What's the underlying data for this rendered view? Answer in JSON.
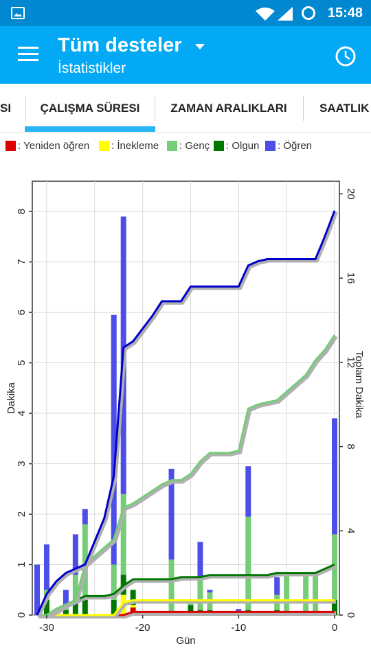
{
  "status_bar": {
    "time": "15:48",
    "icons": [
      "image-icon",
      "wifi-icon",
      "signal-icon",
      "battery-icon"
    ]
  },
  "app_bar": {
    "title": "Tüm desteler",
    "subtitle": "İstatistikler",
    "icons": [
      "menu-icon",
      "dropdown-icon",
      "clock-icon"
    ]
  },
  "tabs": [
    {
      "label": "SI",
      "active": false
    },
    {
      "label": "ÇALIŞMA SÜRESI",
      "active": true
    },
    {
      "label": "ZAMAN ARALIKLARI",
      "active": false
    },
    {
      "label": "SAATLIK",
      "active": false
    }
  ],
  "colors": {
    "primary": "#03a9f4",
    "status": "#0288d1",
    "tab_indicator": "#29b6f6"
  },
  "chart_data": {
    "type": "bar",
    "xlabel": "Gün",
    "ylabel": "Dakika",
    "ylabel_right": "Toplam Dakika",
    "xlim": [
      -31.5,
      0.5
    ],
    "ylim": [
      0,
      8.6
    ],
    "ylim_right": [
      0,
      20.6
    ],
    "xticks": [
      -30,
      -20,
      -10,
      0
    ],
    "yticks": [
      0,
      1,
      2,
      3,
      4,
      5,
      6,
      7,
      8
    ],
    "yticks_right": [
      0,
      4,
      8,
      12,
      16,
      20
    ],
    "grid": true,
    "legend_position": "top",
    "series": [
      {
        "name": ": Yeniden öğren",
        "color": "#dd0000"
      },
      {
        "name": ": İnekleme",
        "color": "#ffff00"
      },
      {
        "name": ": Genç",
        "color": "#77cc77"
      },
      {
        "name": ": Olgun",
        "color": "#007700"
      },
      {
        "name": ": Öğren",
        "color": "#4d4de8"
      }
    ],
    "bars": [
      {
        "day": -31,
        "relearn": 0,
        "cram": 0,
        "young": 0,
        "mature": 0,
        "learn": 1.0
      },
      {
        "day": -30,
        "relearn": 0,
        "cram": 0,
        "young": 0.2,
        "mature": 0.3,
        "learn": 0.9
      },
      {
        "day": -28,
        "relearn": 0,
        "cram": 0,
        "young": 0.1,
        "mature": 0.1,
        "learn": 0.3
      },
      {
        "day": -27,
        "relearn": 0,
        "cram": 0,
        "young": 0.5,
        "mature": 0.3,
        "learn": 0.8
      },
      {
        "day": -26,
        "relearn": 0,
        "cram": 0,
        "young": 1.5,
        "mature": 0.3,
        "learn": 0.3
      },
      {
        "day": -23,
        "relearn": 0,
        "cram": 0,
        "young": 0.7,
        "mature": 0.3,
        "learn": 4.95
      },
      {
        "day": -22,
        "relearn": 0,
        "cram": 0.4,
        "young": 1.6,
        "mature": 0.4,
        "learn": 5.5
      },
      {
        "day": -21,
        "relearn": 0.15,
        "cram": 0.05,
        "young": 0,
        "mature": 0.3,
        "learn": 0
      },
      {
        "day": -17,
        "relearn": 0,
        "cram": 0,
        "young": 1.05,
        "mature": 0.05,
        "learn": 1.8
      },
      {
        "day": -15,
        "relearn": 0,
        "cram": 0,
        "young": 0.1,
        "mature": 0.2,
        "learn": 0
      },
      {
        "day": -14,
        "relearn": 0,
        "cram": 0,
        "young": 0.65,
        "mature": 0.1,
        "learn": 0.7
      },
      {
        "day": -13,
        "relearn": 0,
        "cram": 0,
        "young": 0.35,
        "mature": 0.1,
        "learn": 0.05
      },
      {
        "day": -10,
        "relearn": 0,
        "cram": 0,
        "young": 0,
        "mature": 0,
        "learn": 0.12
      },
      {
        "day": -9,
        "relearn": 0,
        "cram": 0,
        "young": 1.85,
        "mature": 0.1,
        "learn": 1.0
      },
      {
        "day": -6,
        "relearn": 0,
        "cram": 0,
        "young": 0.3,
        "mature": 0.1,
        "learn": 0.35
      },
      {
        "day": -5,
        "relearn": 0,
        "cram": 0,
        "young": 0.8,
        "mature": 0.05,
        "learn": 0
      },
      {
        "day": -3,
        "relearn": 0,
        "cram": 0,
        "young": 0.85,
        "mature": 0,
        "learn": 0
      },
      {
        "day": -2,
        "relearn": 0,
        "cram": 0,
        "young": 0.78,
        "mature": 0,
        "learn": 0
      },
      {
        "day": 0,
        "relearn": 0,
        "cram": 0,
        "young": 1.3,
        "mature": 0.3,
        "learn": 2.3
      }
    ],
    "cumulative": {
      "x": [
        -31,
        -30,
        -29,
        -28,
        -27,
        -26,
        -25,
        -24,
        -23,
        -22,
        -21,
        -20,
        -19,
        -18,
        -17,
        -16,
        -15,
        -14,
        -13,
        -12,
        -11,
        -10,
        -9,
        -8,
        -7,
        -6,
        -5,
        -4,
        -3,
        -2,
        -1,
        0
      ],
      "learn": [
        0,
        1.0,
        1.6,
        2.0,
        2.2,
        2.4,
        3.5,
        4.6,
        6.6,
        12.7,
        13.0,
        13.6,
        14.2,
        14.9,
        14.9,
        14.9,
        15.6,
        15.6,
        15.6,
        15.6,
        15.6,
        15.6,
        16.6,
        16.8,
        16.9,
        16.9,
        16.9,
        16.9,
        16.9,
        16.9,
        18.0,
        19.2
      ],
      "young": [
        0,
        0,
        0.3,
        0.5,
        0.7,
        2.4,
        2.8,
        3.2,
        3.6,
        5.1,
        5.3,
        5.6,
        5.9,
        6.2,
        6.4,
        6.4,
        6.7,
        7.3,
        7.7,
        7.7,
        7.7,
        7.8,
        9.8,
        10.0,
        10.1,
        10.2,
        10.6,
        11.0,
        11.4,
        12.1,
        12.6,
        13.3
      ],
      "mature": [
        0,
        0,
        0.2,
        0.5,
        0.7,
        0.9,
        0.9,
        0.9,
        1.0,
        1.4,
        1.7,
        1.7,
        1.7,
        1.7,
        1.7,
        1.8,
        1.8,
        1.8,
        1.9,
        1.9,
        1.9,
        1.9,
        1.9,
        1.9,
        1.9,
        2.0,
        2.0,
        2.0,
        2.0,
        2.0,
        2.2,
        2.4
      ],
      "cram": [
        0,
        0,
        0,
        0,
        0,
        0,
        0,
        0,
        0,
        0.6,
        0.7,
        0.7,
        0.7,
        0.7,
        0.7,
        0.7,
        0.7,
        0.7,
        0.7,
        0.7,
        0.7,
        0.7,
        0.7,
        0.7,
        0.7,
        0.7,
        0.7,
        0.7,
        0.7,
        0.7,
        0.7,
        0.7
      ],
      "relearn": [
        0,
        0,
        0,
        0,
        0,
        0,
        0,
        0,
        0,
        0,
        0.15,
        0.15,
        0.15,
        0.15,
        0.15,
        0.15,
        0.15,
        0.15,
        0.15,
        0.15,
        0.15,
        0.15,
        0.15,
        0.15,
        0.15,
        0.15,
        0.15,
        0.15,
        0.15,
        0.15,
        0.15,
        0.15
      ]
    }
  }
}
